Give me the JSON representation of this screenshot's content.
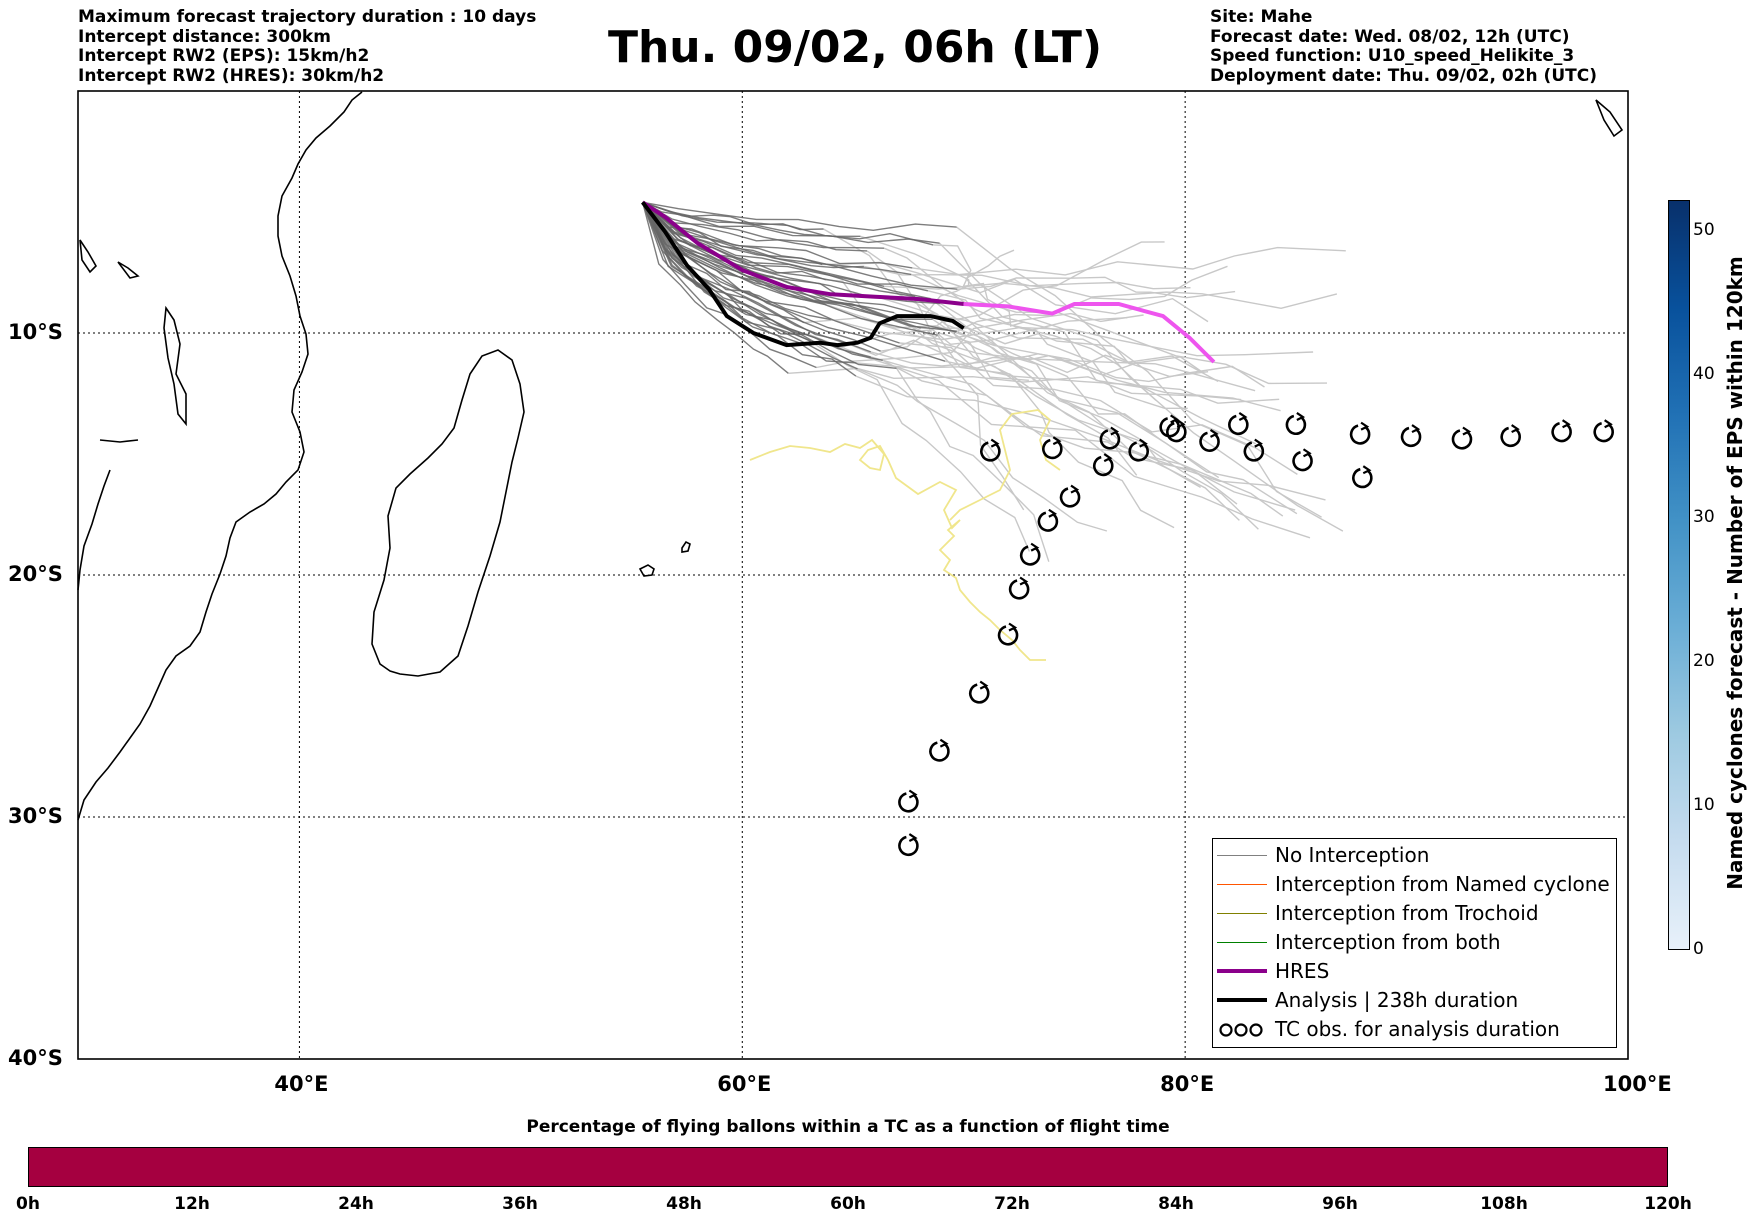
{
  "header_left": [
    "Maximum forecast trajectory duration : 10 days",
    "Intercept distance: 300km",
    "Intercept RW2 (EPS):  15km/h2",
    "Intercept RW2 (HRES): 30km/h2"
  ],
  "title": "Thu. 09/02, 06h (LT)",
  "header_right": [
    "Site: Mahe",
    "Forecast date: Wed. 08/02, 12h (UTC)",
    "Speed function: U10_speed_Helikite_3",
    "Deployment date: Thu. 09/02, 02h (UTC)"
  ],
  "map": {
    "extent": {
      "lon_min": 30,
      "lon_max": 100,
      "lat_max": 0,
      "lat_min": -40
    },
    "lat_ticks": [
      {
        "value": -10,
        "label": "10°S"
      },
      {
        "value": -20,
        "label": "20°S"
      },
      {
        "value": -30,
        "label": "30°S"
      },
      {
        "value": -40,
        "label": "40°S"
      }
    ],
    "lon_ticks": [
      {
        "value": 40,
        "label": "40°E"
      },
      {
        "value": 60,
        "label": "60°E"
      },
      {
        "value": 80,
        "label": "80°E"
      },
      {
        "value": 100,
        "label": "100°E"
      }
    ],
    "launch_site": {
      "lon": 55.5,
      "lat": -4.6
    },
    "hres_track": [
      [
        55.5,
        -4.6
      ],
      [
        56.5,
        -5.2
      ],
      [
        58,
        -6.3
      ],
      [
        60,
        -7.4
      ],
      [
        62,
        -8.1
      ],
      [
        64,
        -8.4
      ],
      [
        66,
        -8.5
      ],
      [
        68,
        -8.6
      ],
      [
        70,
        -8.8
      ],
      [
        72,
        -8.9
      ],
      [
        74,
        -9.2
      ],
      [
        75,
        -8.8
      ],
      [
        77,
        -8.8
      ],
      [
        79,
        -9.3
      ],
      [
        80.2,
        -10.2
      ],
      [
        81.3,
        -11.2
      ]
    ],
    "analysis_track": [
      [
        55.5,
        -4.6
      ],
      [
        56.5,
        -5.8
      ],
      [
        57.5,
        -7.2
      ],
      [
        58.5,
        -8.2
      ],
      [
        59.3,
        -9.3
      ],
      [
        60.5,
        -10.0
      ],
      [
        62,
        -10.5
      ],
      [
        63.5,
        -10.4
      ],
      [
        64.3,
        -10.5
      ],
      [
        65.2,
        -10.4
      ],
      [
        65.8,
        -10.2
      ],
      [
        66.2,
        -9.6
      ],
      [
        67,
        -9.3
      ],
      [
        68.5,
        -9.3
      ],
      [
        69.5,
        -9.5
      ],
      [
        70,
        -9.8
      ]
    ],
    "tc_observations": [
      [
        67.5,
        -31.2
      ],
      [
        67.5,
        -29.4
      ],
      [
        68.9,
        -27.3
      ],
      [
        70.7,
        -24.9
      ],
      [
        72,
        -22.5
      ],
      [
        72.5,
        -20.6
      ],
      [
        73,
        -19.2
      ],
      [
        73.8,
        -17.8
      ],
      [
        74.8,
        -16.8
      ],
      [
        76.3,
        -15.5
      ],
      [
        77.9,
        -14.9
      ],
      [
        79.6,
        -14.1
      ],
      [
        81.1,
        -14.5
      ],
      [
        83.1,
        -14.9
      ],
      [
        85.3,
        -15.3
      ],
      [
        88,
        -16.0
      ],
      [
        71.2,
        -14.9
      ],
      [
        74,
        -14.8
      ],
      [
        76.6,
        -14.4
      ],
      [
        79.3,
        -13.9
      ],
      [
        82.4,
        -13.8
      ],
      [
        85,
        -13.8
      ],
      [
        87.9,
        -14.2
      ],
      [
        90.2,
        -14.3
      ],
      [
        92.5,
        -14.4
      ],
      [
        94.7,
        -14.3
      ],
      [
        97,
        -14.1
      ],
      [
        98.9,
        -14.1
      ]
    ]
  },
  "legend": {
    "items": [
      {
        "label": "No Interception",
        "color": "#808080",
        "width": 1.5
      },
      {
        "label": "Interception from Named cyclone",
        "color": "#ff5500",
        "width": 1.5
      },
      {
        "label": "Interception from Trochoid",
        "color": "#808000",
        "width": 1.5
      },
      {
        "label": "Interception from both",
        "color": "#008000",
        "width": 1.5
      },
      {
        "label": "HRES",
        "color": "#8b008b",
        "width": 4
      },
      {
        "label": "Analysis | 238h duration",
        "color": "#000000",
        "width": 4
      },
      {
        "label": "TC obs. for analysis duration",
        "color": "#000000",
        "width": 0
      }
    ]
  },
  "colorbar_right": {
    "label": "Named cyclones forecast - Number of EPS within 120km",
    "ticks": [
      "0",
      "10",
      "20",
      "30",
      "40",
      "50"
    ],
    "range": [
      0,
      52
    ]
  },
  "colorbar_bottom": {
    "label": "Percentage of flying ballons within a TC as a function of flight time",
    "ticks": [
      "0h",
      "12h",
      "24h",
      "36h",
      "48h",
      "60h",
      "72h",
      "84h",
      "96h",
      "108h",
      "120h"
    ],
    "color": "#a50040"
  }
}
